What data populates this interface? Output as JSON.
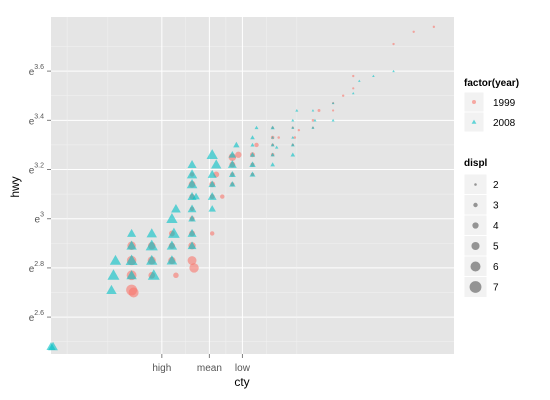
{
  "chart_data": {
    "type": "scatter",
    "xlabel": "cty",
    "ylabel": "hwy",
    "x_ticks": [
      {
        "value": 14.5,
        "label": "high"
      },
      {
        "value": 16.86,
        "label": "mean"
      },
      {
        "value": 18.5,
        "label": "low"
      }
    ],
    "y_ticks": [
      {
        "value": 2.6,
        "base": "e",
        "exp": "2.6"
      },
      {
        "value": 2.8,
        "base": "e",
        "exp": "2.8"
      },
      {
        "value": 3.0,
        "base": "e",
        "exp": "3"
      },
      {
        "value": 3.2,
        "base": "e",
        "exp": "3.2"
      },
      {
        "value": 3.4,
        "base": "e",
        "exp": "3.4"
      },
      {
        "value": 3.6,
        "base": "e",
        "exp": "3.6"
      }
    ],
    "xlim": [
      9.0,
      29.0
    ],
    "ylim": [
      2.45,
      3.82
    ],
    "grid": true,
    "legend_position": "right",
    "series": [
      {
        "name": "1999",
        "shape": "circle",
        "color": "#F8766D",
        "points": [
          [
            13,
            2.89,
            5.2
          ],
          [
            13,
            2.83,
            5.7
          ],
          [
            13,
            2.77,
            5.9
          ],
          [
            13,
            2.71,
            6.5
          ],
          [
            13.1,
            2.7,
            6.0
          ],
          [
            14,
            2.89,
            4.7
          ],
          [
            14,
            2.83,
            5.0
          ],
          [
            14,
            2.77,
            4.2
          ],
          [
            15,
            2.83,
            4.6
          ],
          [
            15,
            2.89,
            4.0
          ],
          [
            15,
            2.94,
            3.8
          ],
          [
            15.2,
            2.77,
            3.6
          ],
          [
            16,
            2.83,
            5.4
          ],
          [
            16,
            2.89,
            4.6
          ],
          [
            16,
            2.94,
            3.8
          ],
          [
            16,
            3.0,
            3.4
          ],
          [
            16,
            3.04,
            3.0
          ],
          [
            16,
            3.09,
            3.5
          ],
          [
            16,
            3.14,
            4.2
          ],
          [
            16,
            3.18,
            3.0
          ],
          [
            16.1,
            2.8,
            5.7
          ],
          [
            17,
            2.94,
            3.0
          ],
          [
            17,
            3.09,
            3.3
          ],
          [
            17,
            3.14,
            3.8
          ],
          [
            17.2,
            3.18,
            3.8
          ],
          [
            17.5,
            3.09,
            3.0
          ],
          [
            18,
            3.14,
            2.8
          ],
          [
            18,
            3.18,
            3.0
          ],
          [
            18,
            3.22,
            3.8
          ],
          [
            18,
            3.25,
            4.7
          ],
          [
            18.3,
            3.26,
            4.0
          ],
          [
            19,
            3.26,
            3.3
          ],
          [
            19,
            3.22,
            2.8
          ],
          [
            19,
            3.18,
            2.5
          ],
          [
            19.2,
            3.3,
            3.0
          ],
          [
            20,
            3.26,
            2.5
          ],
          [
            20,
            3.3,
            2.2
          ],
          [
            20,
            3.33,
            2.5
          ],
          [
            20,
            3.37,
            2.0
          ],
          [
            20.3,
            3.33,
            2.0
          ],
          [
            21,
            3.3,
            2.0
          ],
          [
            21,
            3.37,
            1.9
          ],
          [
            21.1,
            3.33,
            2.0
          ],
          [
            21.3,
            3.36,
            1.9
          ],
          [
            22,
            3.37,
            1.8
          ],
          [
            22,
            3.4,
            2.0
          ],
          [
            22.3,
            3.44,
            2.2
          ],
          [
            23,
            3.44,
            1.8
          ],
          [
            23,
            3.47,
            1.8
          ],
          [
            23.5,
            3.5,
            1.9
          ],
          [
            24,
            3.53,
            1.8
          ],
          [
            24,
            3.58,
            1.9
          ],
          [
            26,
            3.71,
            1.9
          ],
          [
            27,
            3.76,
            1.9
          ],
          [
            28,
            3.78,
            1.9
          ]
        ]
      },
      {
        "name": "2008",
        "shape": "triangle",
        "color": "#00BFC4",
        "points": [
          [
            9,
            2.48,
            4.7
          ],
          [
            9.1,
            2.48,
            5.0
          ],
          [
            12,
            2.71,
            5.3
          ],
          [
            12.1,
            2.77,
            6.0
          ],
          [
            12.2,
            2.83,
            5.7
          ],
          [
            13,
            2.77,
            5.3
          ],
          [
            13,
            2.83,
            6.0
          ],
          [
            13,
            2.89,
            5.3
          ],
          [
            13,
            2.94,
            4.7
          ],
          [
            14,
            2.83,
            5.7
          ],
          [
            14,
            2.89,
            6.1
          ],
          [
            14,
            2.94,
            5.3
          ],
          [
            14.1,
            2.77,
            6.0
          ],
          [
            15,
            2.83,
            5.4
          ],
          [
            15,
            2.89,
            5.3
          ],
          [
            15,
            3.0,
            5.7
          ],
          [
            15.1,
            2.94,
            5.9
          ],
          [
            15.2,
            3.04,
            5.0
          ],
          [
            16,
            2.89,
            4.6
          ],
          [
            16,
            2.94,
            4.7
          ],
          [
            16,
            3.0,
            4.0
          ],
          [
            16,
            3.04,
            4.6
          ],
          [
            16,
            3.09,
            4.7
          ],
          [
            16,
            3.14,
            5.4
          ],
          [
            16,
            3.18,
            5.3
          ],
          [
            16,
            3.22,
            4.7
          ],
          [
            16.2,
            3.09,
            4.0
          ],
          [
            17,
            3.04,
            4.0
          ],
          [
            17,
            3.09,
            4.6
          ],
          [
            17,
            3.14,
            4.0
          ],
          [
            17,
            3.18,
            4.7
          ],
          [
            17,
            3.26,
            5.7
          ],
          [
            17.2,
            3.22,
            5.3
          ],
          [
            18,
            3.14,
            3.5
          ],
          [
            18,
            3.18,
            3.7
          ],
          [
            18,
            3.22,
            4.6
          ],
          [
            18,
            3.26,
            4.0
          ],
          [
            18.2,
            3.3,
            3.5
          ],
          [
            19,
            3.18,
            3.3
          ],
          [
            19,
            3.22,
            3.5
          ],
          [
            19,
            3.26,
            3.0
          ],
          [
            19,
            3.3,
            2.5
          ],
          [
            19,
            3.33,
            2.7
          ],
          [
            19.2,
            3.37,
            2.4
          ],
          [
            20,
            3.22,
            2.7
          ],
          [
            20,
            3.26,
            2.5
          ],
          [
            20,
            3.3,
            2.4
          ],
          [
            20,
            3.33,
            2.0
          ],
          [
            20,
            3.37,
            2.5
          ],
          [
            20.2,
            3.29,
            2.2
          ],
          [
            21,
            3.26,
            2.7
          ],
          [
            21,
            3.3,
            2.4
          ],
          [
            21,
            3.33,
            2.0
          ],
          [
            21,
            3.37,
            2.0
          ],
          [
            21,
            3.4,
            2.0
          ],
          [
            21.2,
            3.44,
            2.0
          ],
          [
            22,
            3.37,
            2.0
          ],
          [
            22,
            3.44,
            1.8
          ],
          [
            22.1,
            3.4,
            2.0
          ],
          [
            23,
            3.4,
            2.0
          ],
          [
            23,
            3.47,
            1.8
          ],
          [
            24,
            3.51,
            1.8
          ],
          [
            24.3,
            3.56,
            1.8
          ],
          [
            25,
            3.58,
            1.8
          ],
          [
            26,
            3.6,
            1.8
          ]
        ]
      }
    ],
    "legends": [
      {
        "title": "factor(year)",
        "type": "shape-colour",
        "items": [
          {
            "label": "1999",
            "shape": "circle",
            "color": "#F8766D"
          },
          {
            "label": "2008",
            "shape": "triangle",
            "color": "#00BFC4"
          }
        ]
      },
      {
        "title": "displ",
        "type": "size",
        "items": [
          {
            "label": "2",
            "value": 2
          },
          {
            "label": "3",
            "value": 3
          },
          {
            "label": "4",
            "value": 4
          },
          {
            "label": "5",
            "value": 5
          },
          {
            "label": "6",
            "value": 6
          },
          {
            "label": "7",
            "value": 7
          }
        ]
      }
    ],
    "point_alpha": 0.6,
    "legend_key_color": "#555555"
  }
}
